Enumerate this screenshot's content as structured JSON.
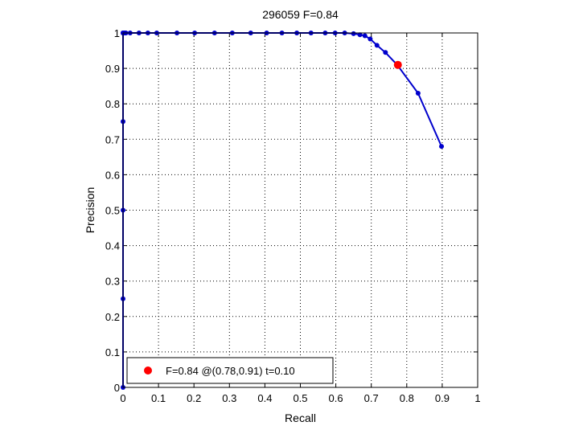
{
  "chart_data": {
    "type": "line",
    "title": "296059 F=0.84",
    "xlabel": "Recall",
    "ylabel": "Precision",
    "xlim": [
      0,
      1
    ],
    "ylim": [
      0,
      1
    ],
    "x_ticks": [
      "0",
      "0.1",
      "0.2",
      "0.3",
      "0.4",
      "0.5",
      "0.6",
      "0.7",
      "0.8",
      "0.9",
      "1"
    ],
    "y_ticks": [
      "0",
      "0.1",
      "0.2",
      "0.3",
      "0.4",
      "0.5",
      "0.6",
      "0.7",
      "0.8",
      "0.9",
      "1"
    ],
    "grid": true,
    "legend_position": "bottom-left",
    "series": [
      {
        "color": "#0000cc",
        "x": [
          0.0,
          0.0,
          0.0,
          0.0,
          0.0,
          0.0,
          0.0,
          0.0,
          0.002,
          0.004,
          0.006,
          0.008,
          0.02,
          0.045,
          0.07,
          0.095,
          0.152,
          0.202,
          0.258,
          0.308,
          0.36,
          0.405,
          0.448,
          0.49,
          0.53,
          0.57,
          0.598,
          0.625,
          0.65,
          0.668,
          0.682,
          0.697,
          0.716,
          0.74,
          0.773,
          0.832,
          0.898
        ],
        "y": [
          0.0,
          0.25,
          0.5,
          0.75,
          1.0,
          1.0,
          1.0,
          1.0,
          1.0,
          1.0,
          1.0,
          1.0,
          1.0,
          1.0,
          1.0,
          1.0,
          1.0,
          1.0,
          1.0,
          1.0,
          1.0,
          1.0,
          1.0,
          1.0,
          1.0,
          1.0,
          1.0,
          1.0,
          0.998,
          0.995,
          0.992,
          0.983,
          0.965,
          0.945,
          0.91,
          0.83,
          0.68
        ]
      }
    ],
    "highlight_point": {
      "x": 0.775,
      "y": 0.91,
      "color": "#ff0000"
    },
    "legend": {
      "label": "F=0.84 @(0.78,0.91) t=0.10",
      "marker_color": "#ff0000"
    }
  }
}
